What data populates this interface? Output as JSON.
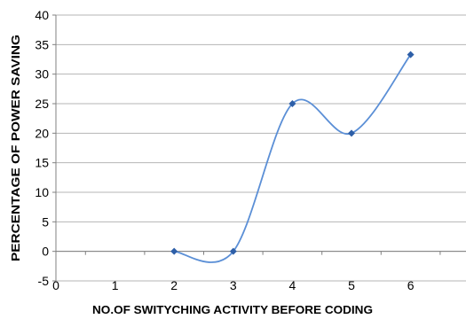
{
  "chart_data": {
    "type": "line",
    "title": "",
    "xlabel": "NO.OF SWITYCHING ACTIVITY BEFORE CODING",
    "ylabel": "PERCENTAGE OF POWER SAVING",
    "xlim": [
      0,
      7
    ],
    "ylim": [
      -5,
      40
    ],
    "x_ticks": [
      "0",
      "1",
      "2",
      "3",
      "4",
      "5",
      "6"
    ],
    "y_ticks": [
      "-5",
      "0",
      "5",
      "10",
      "15",
      "20",
      "25",
      "30",
      "35",
      "40"
    ],
    "grid": true,
    "legend": "none",
    "smooth": true,
    "series": [
      {
        "x": [
          2,
          3,
          4,
          5,
          6
        ],
        "values": [
          0,
          0,
          25,
          20,
          33.3
        ]
      }
    ],
    "colors": {
      "line": "#5b8fd6",
      "marker": "#2e5fa8",
      "grid": "#b4b4b4",
      "axis": "#808080"
    }
  }
}
